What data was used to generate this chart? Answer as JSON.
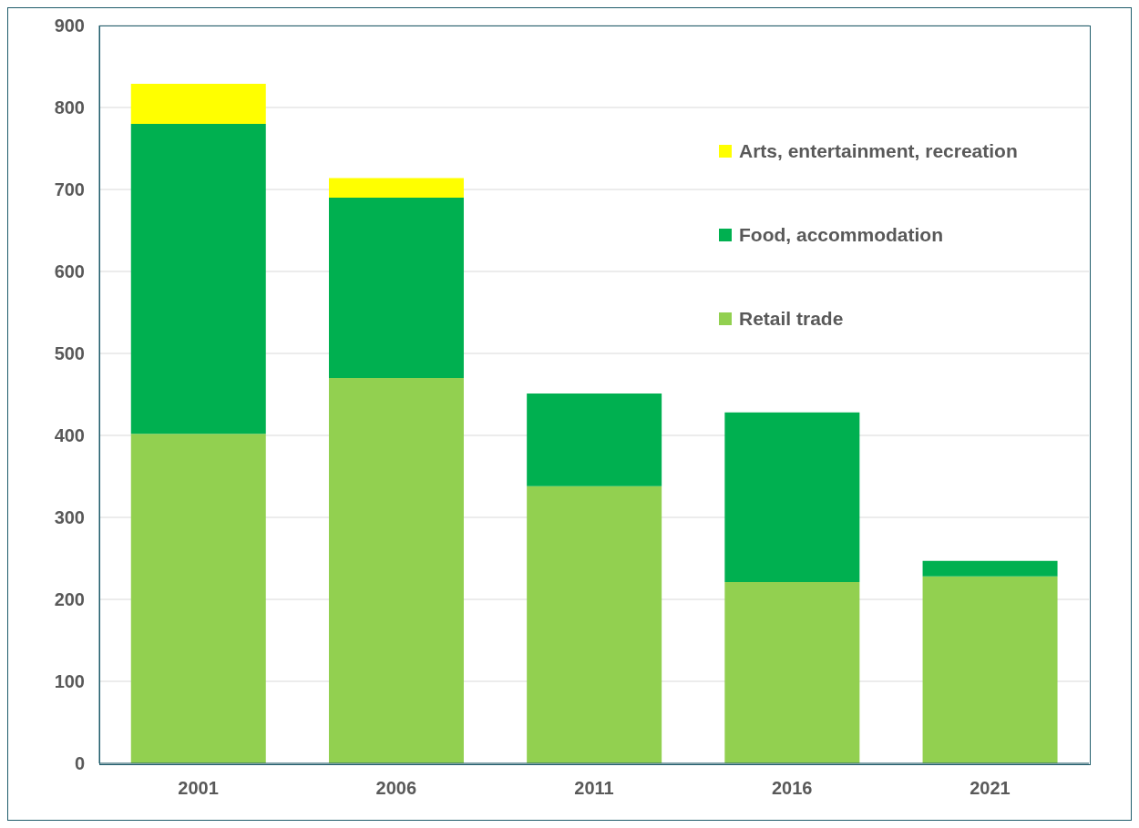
{
  "chart_data": {
    "type": "bar",
    "stacked": true,
    "categories": [
      "2001",
      "2006",
      "2011",
      "2016",
      "2021"
    ],
    "series": [
      {
        "name": "Retail trade",
        "color": "#92d050",
        "values": [
          402,
          470,
          338,
          221,
          228
        ]
      },
      {
        "name": "Food, accommodation",
        "color": "#00b050",
        "values": [
          378,
          220,
          113,
          207,
          19
        ]
      },
      {
        "name": "Arts, entertainment, recreation",
        "color": "#ffff00",
        "values": [
          49,
          24,
          null,
          null,
          null
        ]
      }
    ],
    "ylim": [
      0,
      900
    ],
    "yticks": [
      0,
      100,
      200,
      300,
      400,
      500,
      600,
      700,
      800,
      900
    ],
    "grid": "y",
    "legend": "top right"
  }
}
